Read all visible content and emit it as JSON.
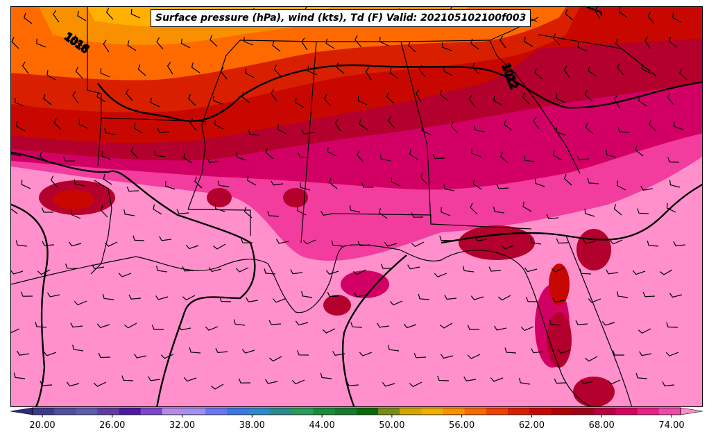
{
  "title": "Surface pressure (hPa), wind (kts), Td (F) Valid: 202105102100f003",
  "contour_labels": [
    "1016",
    "1012"
  ],
  "colorbar": {
    "tick_labels": [
      "20.00",
      "26.00",
      "32.00",
      "38.00",
      "44.00",
      "50.00",
      "56.00",
      "62.00",
      "68.00",
      "74.00"
    ],
    "min": 18,
    "max": 76,
    "colors": [
      "#2c2c7c",
      "#3a3a8c",
      "#4f4f9c",
      "#5c5caa",
      "#603ca0",
      "#4a1aa0",
      "#7a48c8",
      "#b48be8",
      "#a090f0",
      "#6a78f0",
      "#3a78e0",
      "#2c8ac8",
      "#2c8a8a",
      "#2c9a5a",
      "#1a8a3a",
      "#157a2a",
      "#0a6a0a",
      "#7a8a1a",
      "#d0a800",
      "#f0b000",
      "#f89000",
      "#f86a00",
      "#f04000",
      "#d82000",
      "#c80800",
      "#b00000",
      "#a00018",
      "#b80040",
      "#d80060",
      "#e8208a",
      "#f048a8",
      "#ff8ccc"
    ]
  },
  "colors": {
    "dewpoint_warmest": "#ff90cc",
    "dewpoint_hot_pink": "#f23c9e",
    "dewpoint_magenta": "#d20064",
    "dewpoint_crimson": "#b4002c",
    "dewpoint_red": "#c80800",
    "dewpoint_orange": "#ff6a00",
    "dewpoint_amber": "#ffb000"
  }
}
